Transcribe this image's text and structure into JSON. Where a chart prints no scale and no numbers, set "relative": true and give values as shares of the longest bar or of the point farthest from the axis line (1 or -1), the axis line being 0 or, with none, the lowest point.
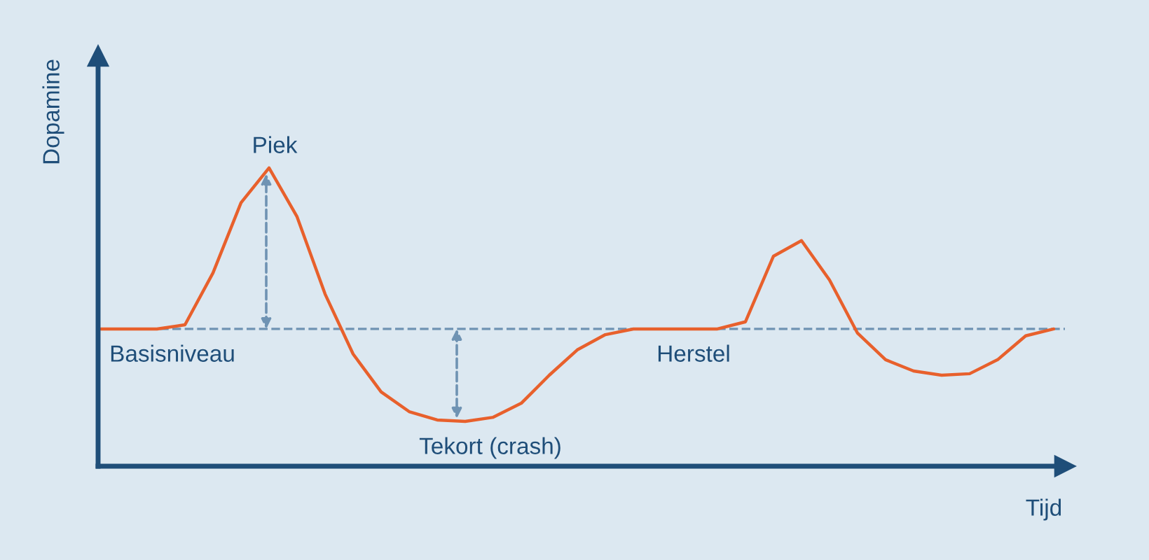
{
  "chart_data": {
    "type": "line",
    "relative": true,
    "xlabel": "Tijd",
    "ylabel": "Dopamine",
    "categories": [
      null,
      null,
      null,
      null,
      null,
      null,
      null,
      null,
      null,
      null,
      null,
      null,
      null,
      null,
      null,
      null,
      null,
      null,
      null,
      null,
      null,
      null,
      null,
      null,
      null,
      null,
      null,
      null,
      null,
      null,
      null,
      null,
      null,
      null,
      null
    ],
    "series": [
      {
        "color": "#e8602c",
        "values": [
          0.46,
          0.46,
          0.46,
          0.474,
          0.648,
          0.883,
          1.0,
          0.836,
          0.577,
          0.376,
          0.249,
          0.183,
          0.155,
          0.15,
          0.164,
          0.211,
          0.305,
          0.39,
          0.441,
          0.46,
          0.46,
          0.46,
          0.46,
          0.484,
          0.704,
          0.756,
          0.624,
          0.446,
          0.357,
          0.319,
          0.305,
          0.31,
          0.357,
          0.437,
          0.46
        ]
      }
    ],
    "ref_lines": [
      {
        "axis": "y",
        "value": 0.46,
        "color": "#6f93b3",
        "line_style": "dashed"
      }
    ],
    "annotations": [
      "Piek",
      "Basisniveau",
      "Tekort (crash)",
      "Herstel"
    ],
    "marker": "none",
    "line_style": "solid"
  }
}
